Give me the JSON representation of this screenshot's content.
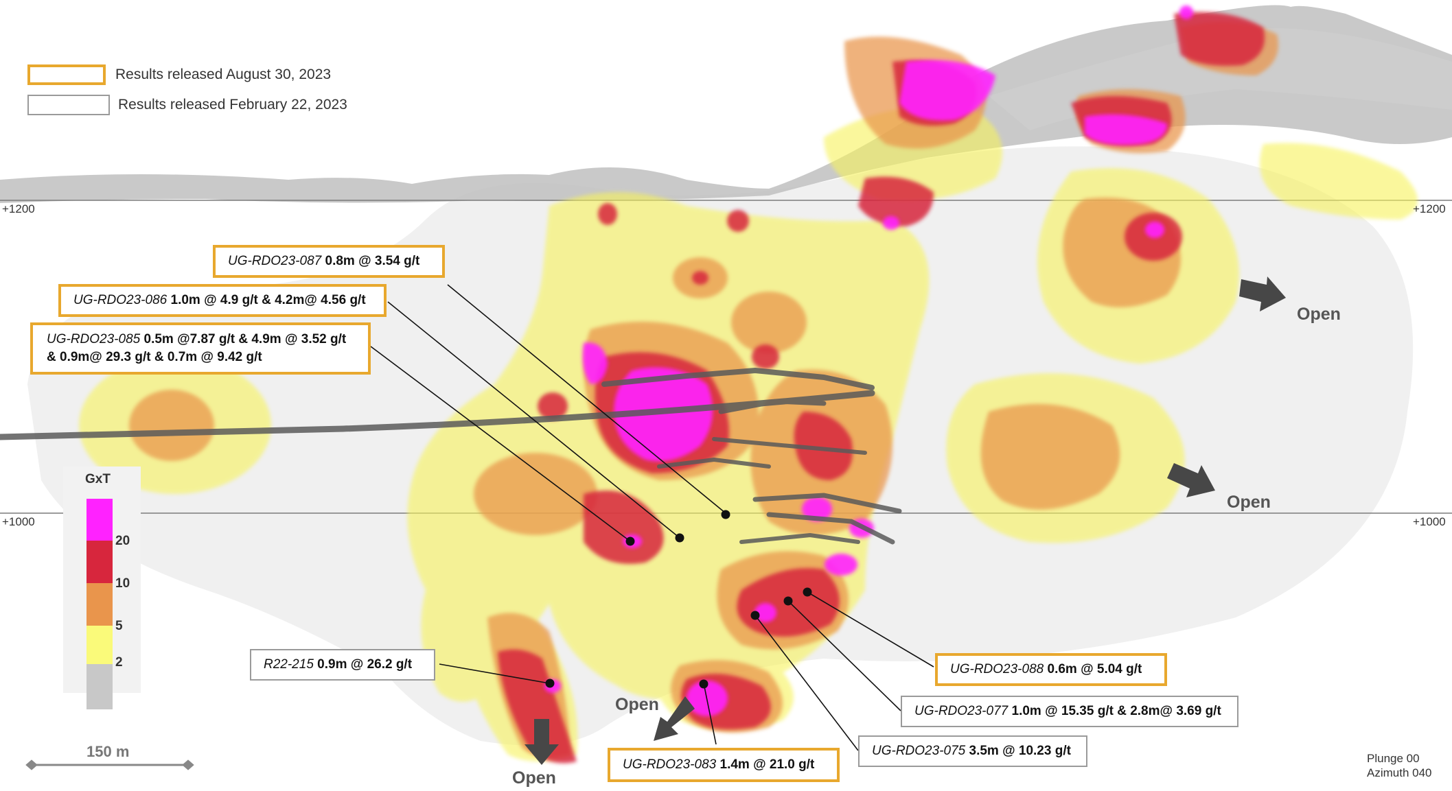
{
  "legend": {
    "new_label": "Results released August 30, 2023",
    "new_color": "#e8a82e",
    "old_label": "Results released February 22, 2023",
    "old_color": "#9a9a9a"
  },
  "elevations": {
    "upper_left": "+1200",
    "upper_right": "+1200",
    "lower_left": "+1000",
    "lower_right": "+1000"
  },
  "callouts": [
    {
      "hole": "UG-RDO23-087",
      "line1": "0.8m @ 3.54 g/t",
      "line2": "",
      "release": "new"
    },
    {
      "hole": "UG-RDO23-086",
      "line1": "1.0m @ 4.9 g/t & 4.2m@ 4.56 g/t",
      "line2": "",
      "release": "new"
    },
    {
      "hole": "UG-RDO23-085",
      "line1": "0.5m @7.87 g/t & 4.9m @ 3.52 g/t",
      "line2": "& 0.9m@ 29.3 g/t & 0.7m @ 9.42 g/t",
      "release": "new"
    },
    {
      "hole": "R22-215",
      "line1": "0.9m @ 26.2 g/t",
      "line2": "",
      "release": "old"
    },
    {
      "hole": "UG-RDO23-088",
      "line1": "0.6m @ 5.04 g/t",
      "line2": "",
      "release": "new"
    },
    {
      "hole": "UG-RDO23-077",
      "line1": "1.0m @ 15.35 g/t & 2.8m@ 3.69 g/t",
      "line2": "",
      "release": "old"
    },
    {
      "hole": "UG-RDO23-075",
      "line1": "3.5m @ 10.23 g/t",
      "line2": "",
      "release": "old"
    },
    {
      "hole": "UG-RDO23-083",
      "line1": "1.4m @ 21.0 g/t",
      "line2": "",
      "release": "new"
    }
  ],
  "open_labels": [
    "Open",
    "Open",
    "Open",
    "Open"
  ],
  "gxt_legend": {
    "title": "GxT",
    "ticks": [
      "20",
      "10",
      "5",
      "2"
    ],
    "colors": [
      "#ff22ff",
      "#d7263d",
      "#e9954c",
      "#fafa7a",
      "#c8c8c8"
    ]
  },
  "scale_bar": "150 m",
  "view": {
    "plunge": "Plunge 00",
    "azimuth": "Azimuth 040"
  }
}
